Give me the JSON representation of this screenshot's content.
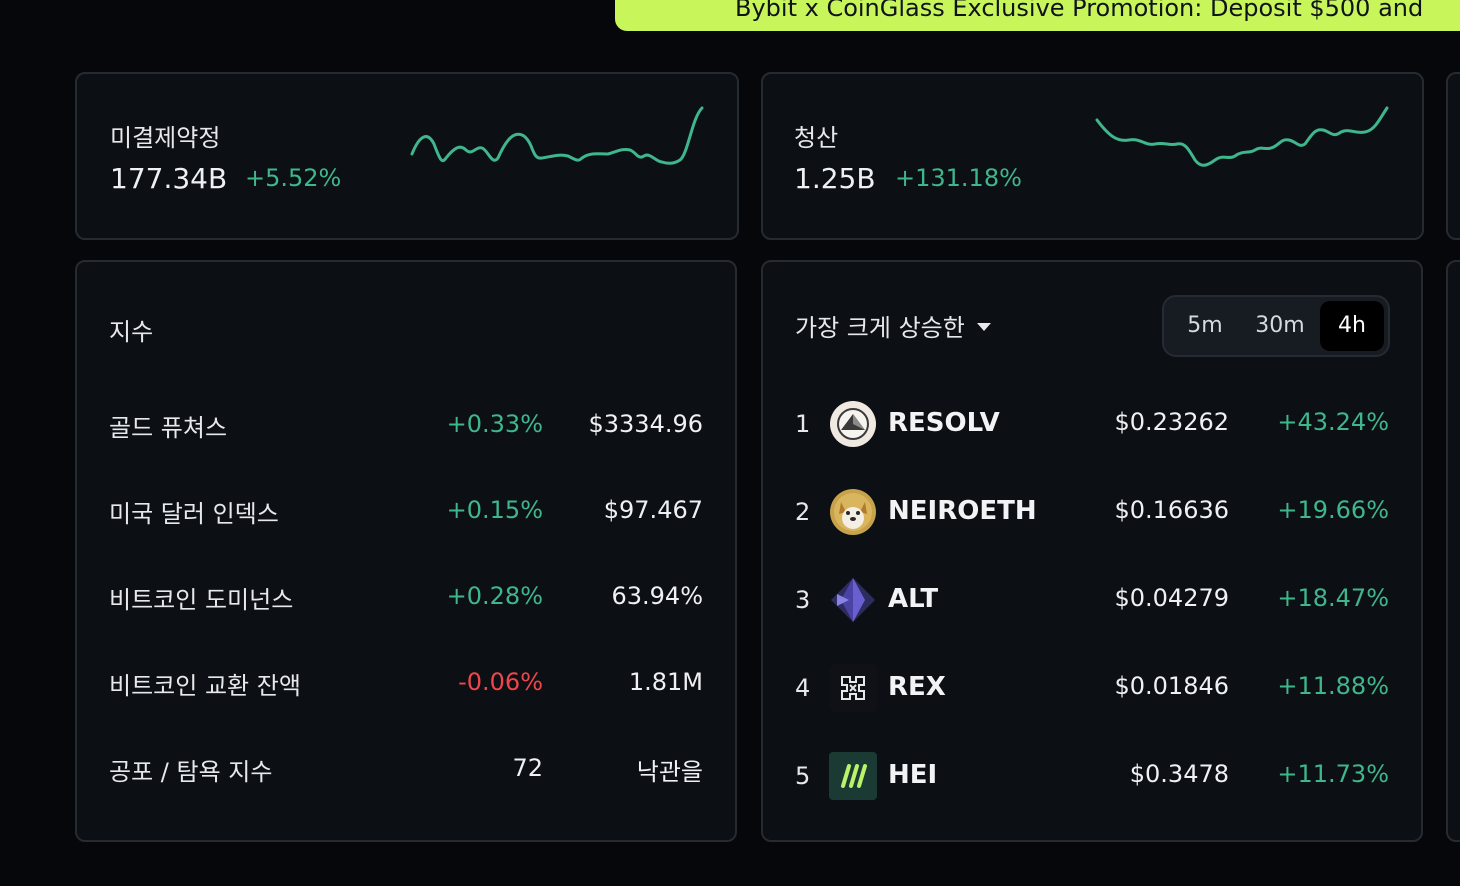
{
  "promo": {
    "text": "Bybit x CoinGlass Exclusive Promotion: Deposit $500 and"
  },
  "open_interest": {
    "title": "미결제약정",
    "value": "177.34B",
    "change": "+5.52%",
    "sparkline_color": "#3fb68b"
  },
  "liquidation": {
    "title": "청산",
    "value": "1.25B",
    "change": "+131.18%",
    "sparkline_color": "#3fb68b"
  },
  "indices": {
    "title": "지수",
    "rows": [
      {
        "name": "골드 퓨쳐스",
        "change": "+0.33%",
        "value": "$3334.96",
        "dir": "up"
      },
      {
        "name": "미국 달러 인덱스",
        "change": "+0.15%",
        "value": "$97.467",
        "dir": "up"
      },
      {
        "name": "비트코인 도미넌스",
        "change": "+0.28%",
        "value": "63.94%",
        "dir": "up"
      },
      {
        "name": "비트코인 교환 잔액",
        "change": "-0.06%",
        "value": "1.81M",
        "dir": "down"
      },
      {
        "name": "공포 / 탐욕 지수",
        "change": "72",
        "value": "낙관을",
        "dir": "neutral"
      }
    ]
  },
  "gainers": {
    "title": "가장 크게 상승한",
    "intervals": [
      "5m",
      "30m",
      "4h"
    ],
    "selected_interval": "4h",
    "rows": [
      {
        "rank": "1",
        "symbol": "RESOLV",
        "icon": "resolv-icon",
        "price": "$0.23262",
        "change": "+43.24%"
      },
      {
        "rank": "2",
        "symbol": "NEIROETH",
        "icon": "neiro-dog-icon",
        "price": "$0.16636",
        "change": "+19.66%"
      },
      {
        "rank": "3",
        "symbol": "ALT",
        "icon": "alt-icon",
        "price": "$0.04279",
        "change": "+18.47%"
      },
      {
        "rank": "4",
        "symbol": "REX",
        "icon": "rex-icon",
        "price": "$0.01846",
        "change": "+11.88%"
      },
      {
        "rank": "5",
        "symbol": "HEI",
        "icon": "hei-icon",
        "price": "$0.3478",
        "change": "+11.73%"
      }
    ]
  },
  "colors": {
    "up": "#3fb68b",
    "down": "#f0454a",
    "promo_bg": "#c8f55a",
    "background": "#05070b",
    "card": "#0c0f14"
  }
}
